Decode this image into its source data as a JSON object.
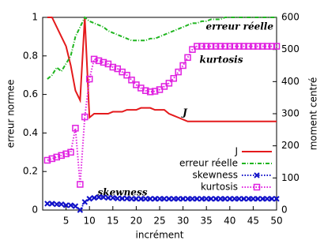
{
  "chart_data": {
    "type": "line",
    "x_label": "incrément",
    "y_label": "erreur normee",
    "y2_label": "moment centré",
    "x": [
      1,
      2,
      3,
      4,
      5,
      6,
      7,
      8,
      9,
      10,
      11,
      12,
      13,
      14,
      15,
      16,
      17,
      18,
      19,
      20,
      21,
      22,
      23,
      24,
      25,
      26,
      27,
      28,
      29,
      30,
      31,
      32,
      33,
      34,
      35,
      36,
      37,
      38,
      39,
      40,
      41,
      42,
      43,
      44,
      45,
      46,
      47,
      48,
      49,
      50
    ],
    "xlim": [
      0,
      50
    ],
    "xticks": [
      5,
      10,
      15,
      20,
      25,
      30,
      35,
      40,
      45,
      50
    ],
    "ylim": [
      0,
      1
    ],
    "yticks": [
      0,
      0.2,
      0.4,
      0.6,
      0.8,
      1
    ],
    "y2lim": [
      0,
      600
    ],
    "y2ticks": [
      0,
      100,
      200,
      300,
      400,
      500,
      600
    ],
    "legend": "lower right",
    "series": [
      {
        "name": "J",
        "color": "#e41a1c",
        "marker": "none",
        "dash": "solid",
        "values": [
          1.0,
          1.0,
          0.95,
          0.9,
          0.85,
          0.75,
          0.62,
          0.57,
          1.0,
          0.48,
          0.5,
          0.5,
          0.5,
          0.5,
          0.51,
          0.51,
          0.51,
          0.52,
          0.52,
          0.52,
          0.53,
          0.53,
          0.53,
          0.52,
          0.52,
          0.52,
          0.5,
          0.49,
          0.48,
          0.47,
          0.46,
          0.46,
          0.46,
          0.46,
          0.46,
          0.46,
          0.46,
          0.46,
          0.46,
          0.46,
          0.46,
          0.46,
          0.46,
          0.46,
          0.46,
          0.46,
          0.46,
          0.46,
          0.46,
          0.46
        ]
      },
      {
        "name": "erreur réelle",
        "color": "#1fb51f",
        "marker": "none",
        "dash": "dashed",
        "values": [
          0.68,
          0.7,
          0.74,
          0.72,
          0.76,
          0.8,
          0.9,
          0.95,
          1.0,
          0.98,
          0.97,
          0.96,
          0.95,
          0.93,
          0.92,
          0.91,
          0.9,
          0.89,
          0.88,
          0.88,
          0.88,
          0.88,
          0.89,
          0.89,
          0.9,
          0.91,
          0.92,
          0.93,
          0.94,
          0.95,
          0.96,
          0.97,
          0.97,
          0.98,
          0.98,
          0.99,
          0.99,
          0.99,
          1.0,
          1.0,
          1.0,
          1.0,
          1.0,
          1.0,
          1.0,
          1.0,
          1.0,
          1.0,
          1.0,
          1.0
        ]
      },
      {
        "name": "skewness",
        "color": "#1010c8",
        "marker": "x",
        "dash": "dotted",
        "axis": "y2",
        "values": [
          20,
          20,
          18,
          18,
          15,
          15,
          12,
          0,
          25,
          35,
          38,
          40,
          40,
          38,
          38,
          36,
          36,
          36,
          35,
          35,
          35,
          35,
          35,
          35,
          35,
          35,
          35,
          35,
          35,
          35,
          35,
          35,
          35,
          35,
          35,
          35,
          35,
          35,
          35,
          35,
          35,
          35,
          35,
          35,
          35,
          35,
          35,
          35,
          35,
          35
        ]
      },
      {
        "name": "kurtosis",
        "color": "#e020e0",
        "marker": "square",
        "dash": "dotted",
        "axis": "y2",
        "values": [
          155,
          160,
          165,
          170,
          175,
          180,
          255,
          80,
          290,
          408,
          470,
          465,
          460,
          455,
          445,
          440,
          430,
          420,
          405,
          390,
          380,
          372,
          368,
          370,
          375,
          385,
          395,
          410,
          430,
          450,
          475,
          500,
          510,
          510,
          510,
          510,
          510,
          510,
          510,
          510,
          510,
          510,
          510,
          510,
          510,
          510,
          510,
          510,
          510,
          510
        ]
      }
    ],
    "annotations": [
      "erreur réelle",
      "kurtosis",
      "J",
      "skewness"
    ]
  }
}
